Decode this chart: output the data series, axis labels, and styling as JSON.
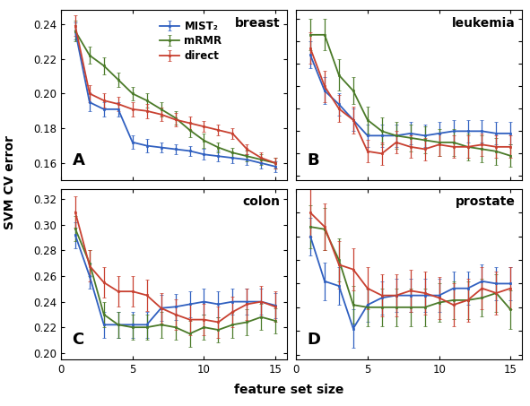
{
  "panels": [
    {
      "label": "A",
      "title": "breast",
      "ylim": [
        0.15,
        0.248
      ],
      "yticks": [
        0.16,
        0.18,
        0.2,
        0.22,
        0.24
      ],
      "mist": {
        "y": [
          0.236,
          0.195,
          0.191,
          0.191,
          0.172,
          0.17,
          0.169,
          0.168,
          0.167,
          0.165,
          0.164,
          0.163,
          0.162,
          0.16,
          0.158
        ],
        "yerr": [
          0.005,
          0.005,
          0.004,
          0.004,
          0.004,
          0.004,
          0.003,
          0.003,
          0.003,
          0.003,
          0.003,
          0.003,
          0.003,
          0.003,
          0.003
        ]
      },
      "mrmr": {
        "y": [
          0.236,
          0.222,
          0.216,
          0.208,
          0.2,
          0.196,
          0.191,
          0.186,
          0.179,
          0.173,
          0.169,
          0.166,
          0.164,
          0.162,
          0.16
        ],
        "yerr": [
          0.006,
          0.005,
          0.005,
          0.004,
          0.004,
          0.004,
          0.004,
          0.004,
          0.004,
          0.004,
          0.003,
          0.003,
          0.003,
          0.003,
          0.003
        ]
      },
      "direct": {
        "y": [
          0.239,
          0.2,
          0.196,
          0.194,
          0.191,
          0.19,
          0.188,
          0.185,
          0.183,
          0.181,
          0.179,
          0.177,
          0.168,
          0.163,
          0.16
        ],
        "yerr": [
          0.006,
          0.005,
          0.004,
          0.004,
          0.004,
          0.004,
          0.004,
          0.004,
          0.004,
          0.003,
          0.003,
          0.003,
          0.003,
          0.003,
          0.003
        ]
      }
    },
    {
      "label": "B",
      "title": "leukemia",
      "ylim": [
        0.048,
        0.124
      ],
      "yticks": [
        0.05,
        0.06,
        0.07,
        0.08,
        0.09,
        0.1,
        0.11,
        0.12
      ],
      "mist": {
        "y": [
          0.104,
          0.088,
          0.082,
          0.075,
          0.068,
          0.068,
          0.068,
          0.069,
          0.068,
          0.069,
          0.07,
          0.07,
          0.07,
          0.069,
          0.069
        ],
        "yerr": [
          0.006,
          0.006,
          0.005,
          0.005,
          0.005,
          0.005,
          0.005,
          0.005,
          0.005,
          0.005,
          0.005,
          0.005,
          0.005,
          0.005,
          0.005
        ]
      },
      "mrmr": {
        "y": [
          0.113,
          0.113,
          0.095,
          0.088,
          0.075,
          0.07,
          0.068,
          0.067,
          0.066,
          0.065,
          0.065,
          0.063,
          0.062,
          0.061,
          0.059
        ],
        "yerr": [
          0.007,
          0.007,
          0.007,
          0.006,
          0.006,
          0.006,
          0.006,
          0.006,
          0.006,
          0.006,
          0.006,
          0.006,
          0.006,
          0.006,
          0.005
        ]
      },
      "direct": {
        "y": [
          0.107,
          0.09,
          0.08,
          0.075,
          0.061,
          0.06,
          0.065,
          0.063,
          0.062,
          0.064,
          0.063,
          0.063,
          0.064,
          0.063,
          0.063
        ],
        "yerr": [
          0.007,
          0.007,
          0.006,
          0.006,
          0.005,
          0.005,
          0.005,
          0.005,
          0.005,
          0.005,
          0.005,
          0.005,
          0.005,
          0.005,
          0.005
        ]
      }
    },
    {
      "label": "C",
      "title": "colon",
      "ylim": [
        0.195,
        0.328
      ],
      "yticks": [
        0.2,
        0.22,
        0.24,
        0.26,
        0.28,
        0.3,
        0.32
      ],
      "mist": {
        "y": [
          0.292,
          0.26,
          0.222,
          0.222,
          0.222,
          0.222,
          0.235,
          0.236,
          0.238,
          0.24,
          0.238,
          0.24,
          0.24,
          0.24,
          0.237
        ],
        "yerr": [
          0.01,
          0.01,
          0.01,
          0.01,
          0.01,
          0.01,
          0.01,
          0.01,
          0.01,
          0.01,
          0.01,
          0.01,
          0.01,
          0.01,
          0.01
        ]
      },
      "mrmr": {
        "y": [
          0.297,
          0.27,
          0.23,
          0.222,
          0.22,
          0.22,
          0.222,
          0.22,
          0.215,
          0.22,
          0.218,
          0.222,
          0.224,
          0.228,
          0.225
        ],
        "yerr": [
          0.01,
          0.01,
          0.01,
          0.01,
          0.01,
          0.01,
          0.01,
          0.01,
          0.01,
          0.01,
          0.01,
          0.01,
          0.01,
          0.01,
          0.01
        ]
      },
      "direct": {
        "y": [
          0.31,
          0.268,
          0.255,
          0.248,
          0.248,
          0.245,
          0.235,
          0.23,
          0.226,
          0.226,
          0.224,
          0.232,
          0.238,
          0.24,
          0.236
        ],
        "yerr": [
          0.012,
          0.012,
          0.012,
          0.012,
          0.012,
          0.012,
          0.012,
          0.012,
          0.012,
          0.012,
          0.012,
          0.012,
          0.012,
          0.012,
          0.012
        ]
      }
    },
    {
      "label": "D",
      "title": "prostate",
      "ylim": [
        0.088,
        0.16
      ],
      "yticks": [
        0.09,
        0.1,
        0.11,
        0.12,
        0.13,
        0.14,
        0.15
      ],
      "mist": {
        "y": [
          0.14,
          0.121,
          0.119,
          0.101,
          0.111,
          0.114,
          0.115,
          0.115,
          0.115,
          0.115,
          0.118,
          0.118,
          0.121,
          0.12,
          0.12
        ],
        "yerr": [
          0.008,
          0.008,
          0.008,
          0.008,
          0.007,
          0.007,
          0.007,
          0.007,
          0.007,
          0.007,
          0.007,
          0.007,
          0.007,
          0.007,
          0.007
        ]
      },
      "mrmr": {
        "y": [
          0.144,
          0.143,
          0.13,
          0.111,
          0.11,
          0.11,
          0.11,
          0.11,
          0.11,
          0.112,
          0.113,
          0.113,
          0.114,
          0.116,
          0.109
        ],
        "yerr": [
          0.009,
          0.009,
          0.009,
          0.008,
          0.008,
          0.008,
          0.008,
          0.008,
          0.008,
          0.008,
          0.008,
          0.008,
          0.008,
          0.008,
          0.008
        ]
      },
      "direct": {
        "y": [
          0.15,
          0.144,
          0.128,
          0.126,
          0.118,
          0.115,
          0.115,
          0.117,
          0.116,
          0.114,
          0.111,
          0.113,
          0.118,
          0.116,
          0.118
        ],
        "yerr": [
          0.01,
          0.01,
          0.01,
          0.009,
          0.009,
          0.009,
          0.009,
          0.009,
          0.009,
          0.009,
          0.009,
          0.009,
          0.009,
          0.009,
          0.009
        ]
      }
    }
  ],
  "colors": {
    "mist": "#3060C0",
    "mrmr": "#4A7A28",
    "direct": "#C84030"
  },
  "x": [
    1,
    2,
    3,
    4,
    5,
    6,
    7,
    8,
    9,
    10,
    11,
    12,
    13,
    14,
    15
  ],
  "xlabel": "feature set size",
  "ylabel": "SVM CV error",
  "legend_labels": [
    "MIST₂",
    "mRMR",
    "direct"
  ],
  "title_fontsize": 10,
  "label_fontsize": 10,
  "tick_fontsize": 8.5,
  "linewidth": 1.3,
  "capsize": 1.5,
  "elinewidth": 0.9,
  "marker": "s",
  "markersize": 2.0
}
